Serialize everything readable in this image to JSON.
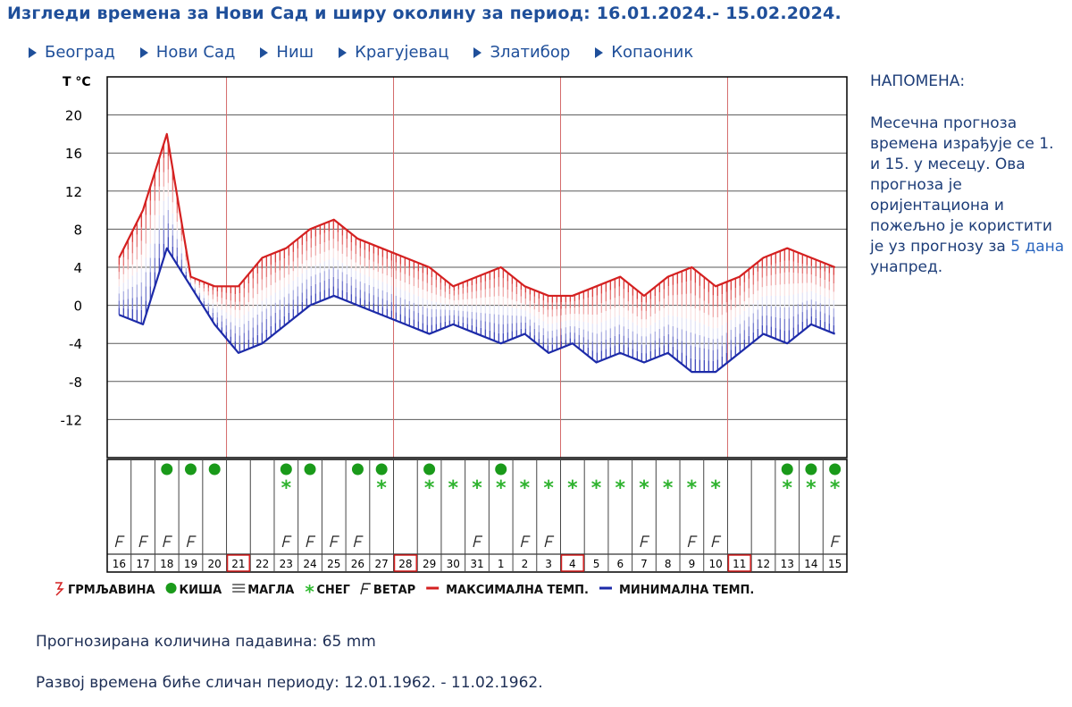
{
  "header": {
    "title": "Изгледи времена за Нови Сад и ширу околину за период: 16.01.2024.- 15.02.2024."
  },
  "nav": [
    {
      "label": "Београд"
    },
    {
      "label": "Нови Сад"
    },
    {
      "label": "Ниш"
    },
    {
      "label": "Крагујевац"
    },
    {
      "label": "Златибор"
    },
    {
      "label": "Копаоник"
    }
  ],
  "note": {
    "heading": "НАПОМЕНА:",
    "text_before": "Месечна прогноза времена израђује се 1. и 15. у месецу. Ова прогноза је оријентациона и пожељно је користити је уз прогнозу за ",
    "link": "5 дана",
    "text_after": " унапред."
  },
  "chart_data": {
    "type": "line",
    "ylabel": "T °C",
    "yticks": [
      20,
      16,
      12,
      8,
      4,
      0,
      -4,
      -8,
      -12
    ],
    "ylim": [
      -16,
      24
    ],
    "grid": true,
    "days": [
      "16",
      "17",
      "18",
      "19",
      "20",
      "21",
      "22",
      "23",
      "24",
      "25",
      "26",
      "27",
      "28",
      "29",
      "30",
      "31",
      "1",
      "2",
      "3",
      "4",
      "5",
      "6",
      "7",
      "8",
      "9",
      "10",
      "11",
      "12",
      "13",
      "14",
      "15"
    ],
    "weekend_marked": [
      "21",
      "28",
      "4",
      "11"
    ],
    "series": [
      {
        "name": "МАКСИМАЛНА ТЕМП.",
        "color": "#d42020",
        "values": [
          5,
          10,
          18,
          3,
          2,
          2,
          5,
          6,
          8,
          9,
          7,
          6,
          5,
          4,
          2,
          3,
          4,
          2,
          1,
          1,
          2,
          3,
          1,
          3,
          4,
          2,
          3,
          5,
          6,
          5,
          4
        ]
      },
      {
        "name": "МИНИМАЛНА ТЕМП.",
        "color": "#1c2aa8",
        "values": [
          -1,
          -2,
          6,
          2,
          -2,
          -5,
          -4,
          -2,
          0,
          1,
          0,
          -1,
          -2,
          -3,
          -2,
          -3,
          -4,
          -3,
          -5,
          -4,
          -6,
          -5,
          -6,
          -5,
          -7,
          -7,
          -5,
          -3,
          -4,
          -2,
          -3
        ]
      }
    ],
    "rain_days": [
      "18",
      "19",
      "20",
      "23",
      "24",
      "26",
      "27",
      "29",
      "1",
      "13",
      "14",
      "15"
    ],
    "snow_days": [
      "23",
      "27",
      "29",
      "30",
      "31",
      "1",
      "2",
      "3",
      "4",
      "5",
      "6",
      "7",
      "8",
      "9",
      "10",
      "13",
      "14",
      "15"
    ],
    "wind_days": [
      "16",
      "17",
      "18",
      "19",
      "23",
      "24",
      "25",
      "26",
      "31",
      "2",
      "3",
      "7",
      "9",
      "10",
      "15"
    ],
    "legend": [
      {
        "symbol": "thunder-icon",
        "label": "ГРМЉАВИНА",
        "color": "#d42020"
      },
      {
        "symbol": "rain-icon",
        "label": "КИША",
        "color": "#1a9a1a"
      },
      {
        "symbol": "fog-icon",
        "label": "МАГЛА",
        "color": "#333333"
      },
      {
        "symbol": "snow-icon",
        "label": "СНЕГ",
        "color": "#33bb33"
      },
      {
        "symbol": "wind-icon",
        "label": "ВЕТАР",
        "color": "#222222"
      },
      {
        "symbol": "max-line",
        "label": "МАКСИМАЛНА ТЕМП.",
        "color": "#d42020"
      },
      {
        "symbol": "min-line",
        "label": "МИНИМАЛНА ТЕМП.",
        "color": "#1c2aa8"
      }
    ]
  },
  "footer": {
    "precip": "Прогнозирана количина падавина:  65  mm",
    "similar": "Развој времена биће сличан периоду: 12.01.1962. - 11.02.1962."
  }
}
